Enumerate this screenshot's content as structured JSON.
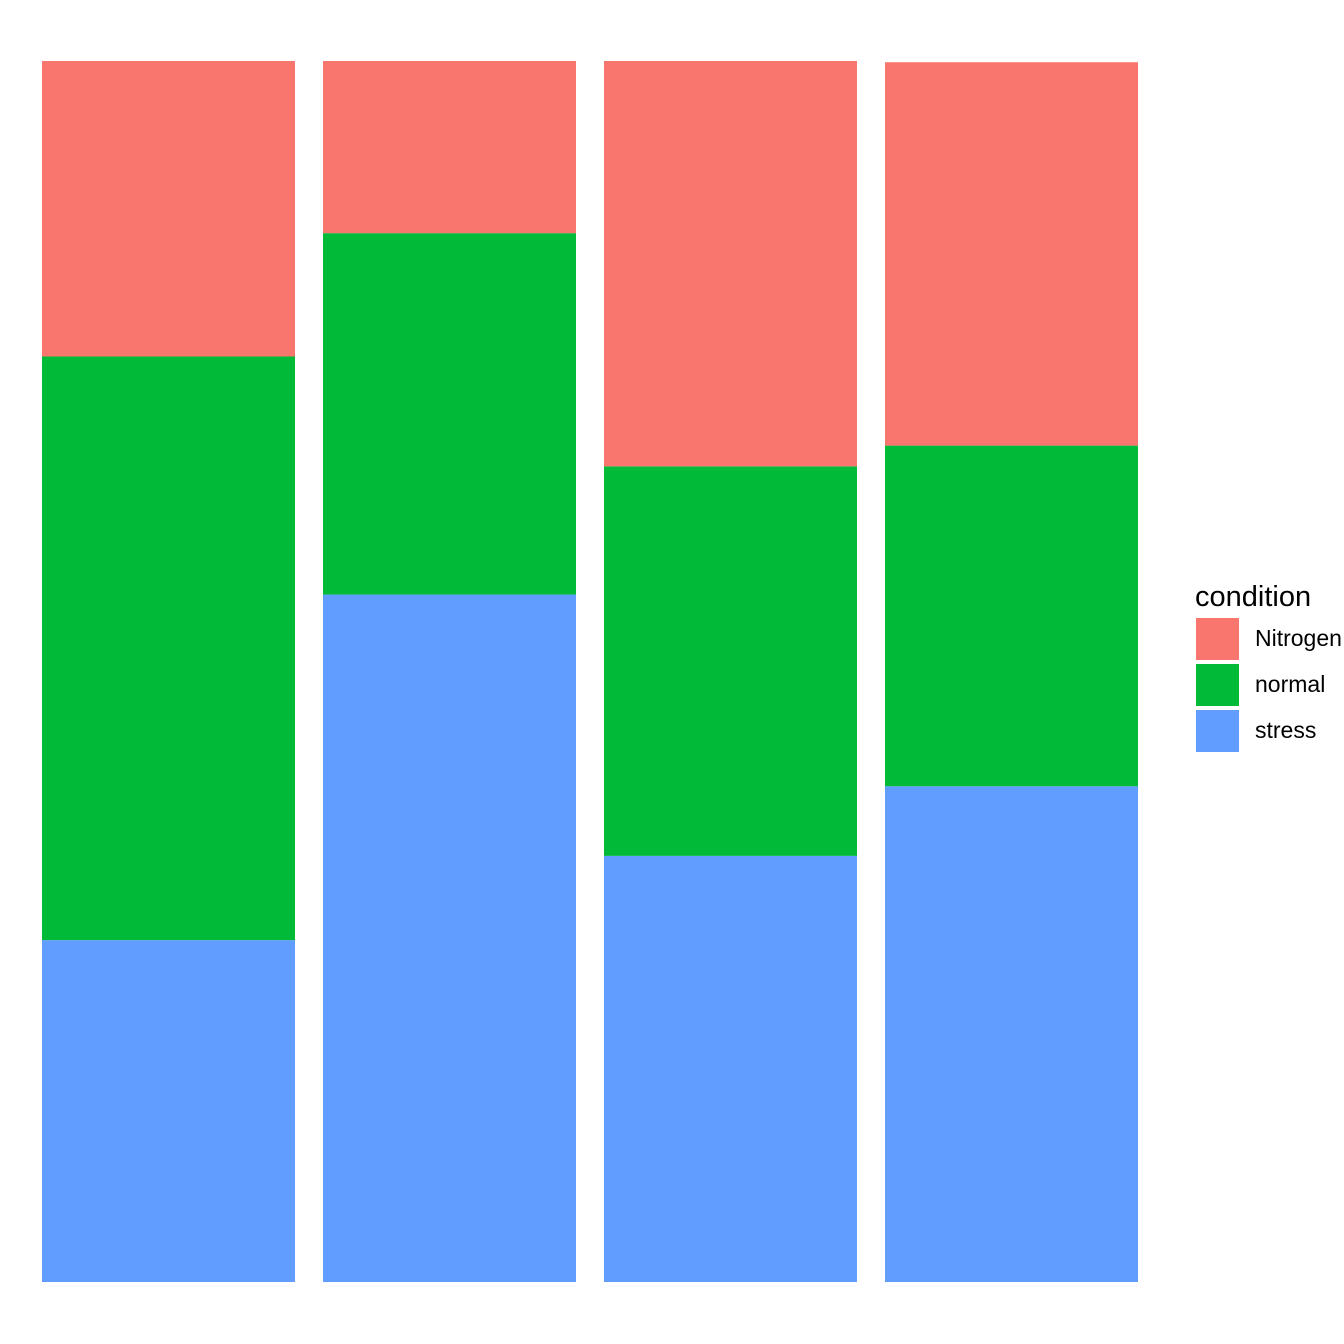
{
  "chart_data": {
    "type": "bar",
    "stacked": true,
    "normalized": true,
    "categories": [
      "",
      "",
      "",
      ""
    ],
    "ylim": [
      0,
      1
    ],
    "grid": false,
    "legend_position": "right",
    "legend_title": "condition",
    "series": [
      {
        "name": "stress",
        "color": "#619CFF",
        "values": [
          0.28,
          0.563,
          0.349,
          0.406
        ]
      },
      {
        "name": "normal",
        "color": "#00BA38",
        "values": [
          0.478,
          0.296,
          0.319,
          0.279
        ]
      },
      {
        "name": "Nitrogen",
        "color": "#F8766D",
        "values": [
          0.242,
          0.141,
          0.332,
          0.314
        ]
      }
    ]
  },
  "legend": {
    "title": "condition",
    "items": [
      {
        "label": "Nitrogen",
        "color": "#F8766D"
      },
      {
        "label": "normal",
        "color": "#00BA38"
      },
      {
        "label": "stress",
        "color": "#619CFF"
      }
    ]
  }
}
